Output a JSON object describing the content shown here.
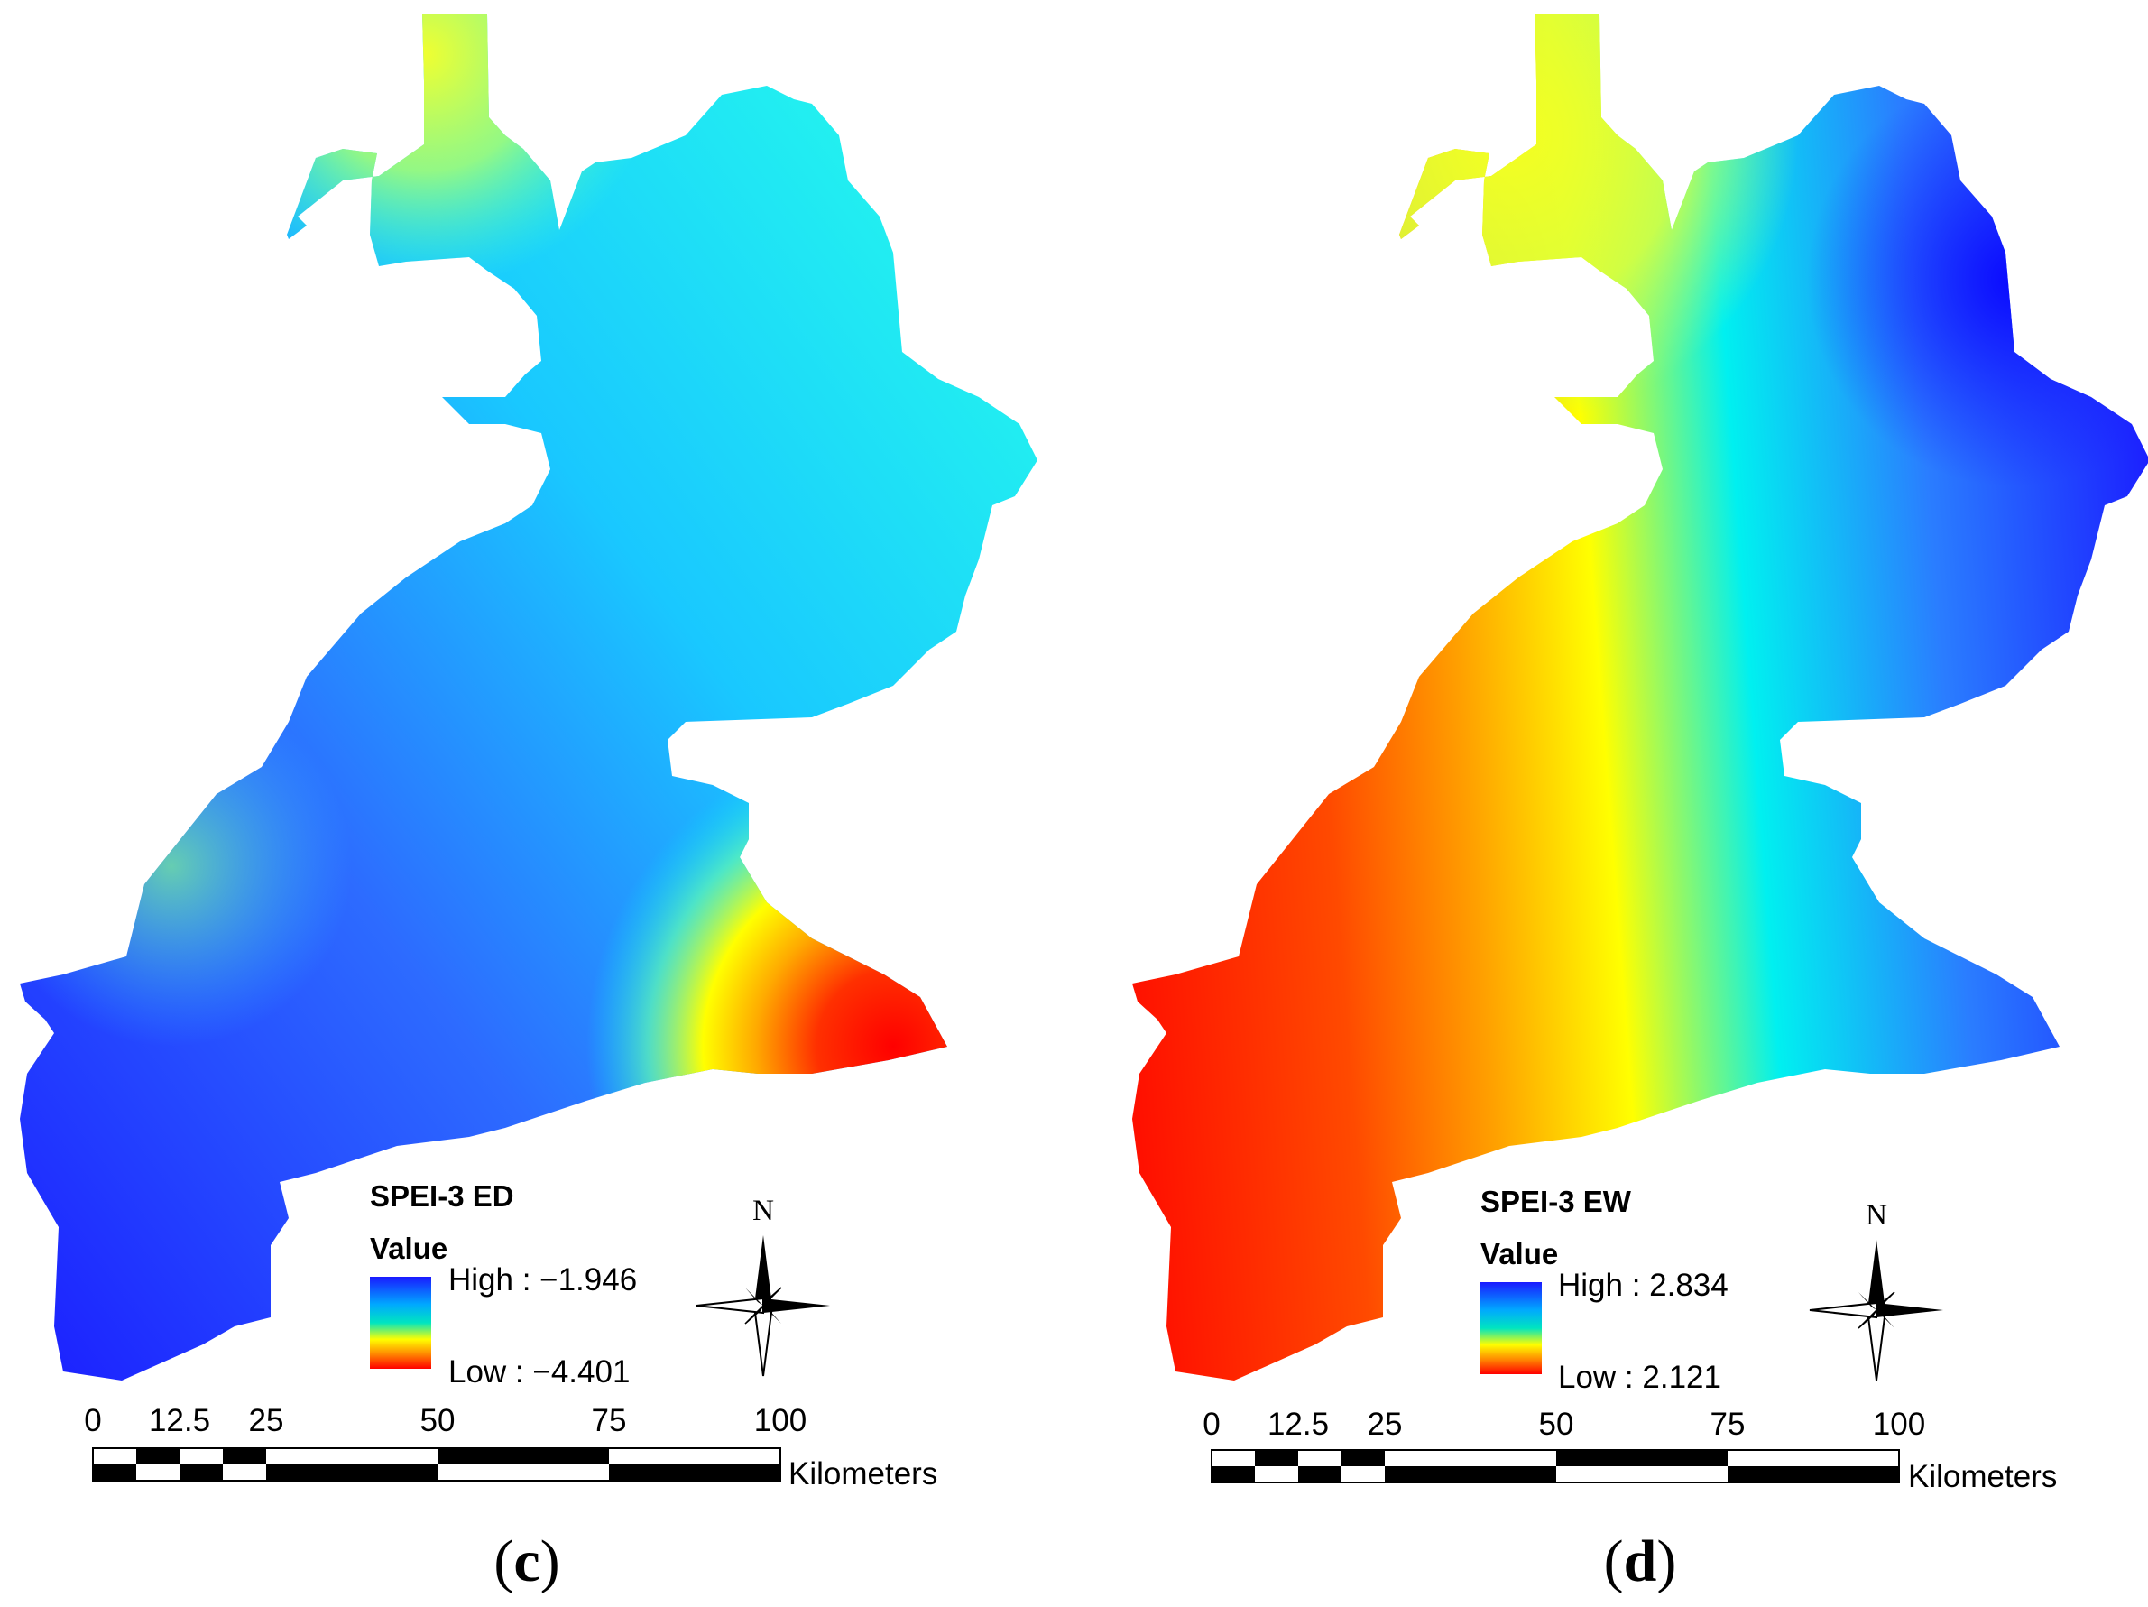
{
  "panels": [
    {
      "id": "c",
      "caption_open": "(",
      "caption_letter": "c",
      "caption_close": ")",
      "legend": {
        "title": "SPEI-3 ED",
        "subtitle": "Value",
        "high_label": "High :  −1.946",
        "low_label": "Low :  −4.401",
        "high_value": -1.946,
        "low_value": -4.401
      },
      "scalebar": {
        "ticks": [
          "0",
          "12.5",
          "25",
          "50",
          "75",
          "100"
        ],
        "unit": "Kilometers"
      },
      "north": "N"
    },
    {
      "id": "d",
      "caption_open": "(",
      "caption_letter": "d",
      "caption_close": ")",
      "legend": {
        "title": "SPEI-3 EW",
        "subtitle": "Value",
        "high_label": "High : 2.834",
        "low_label": "Low : 2.121",
        "high_value": 2.834,
        "low_value": 2.121
      },
      "scalebar": {
        "ticks": [
          "0",
          "12.5",
          "25",
          "50",
          "75",
          "100"
        ],
        "unit": "Kilometers"
      },
      "north": "N"
    }
  ],
  "colors": {
    "ramp_high": "#1a1aff",
    "ramp_mid_high": "#00e5ff",
    "ramp_mid": "#ffff00",
    "ramp_low": "#ff0000"
  }
}
